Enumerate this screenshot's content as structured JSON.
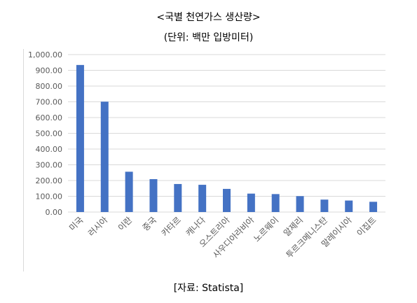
{
  "chart_data": {
    "type": "bar",
    "title": "<국별 천연가스 생산량>",
    "subtitle": "(단위: 백만 입방미터)",
    "source": "[자료: Statista]",
    "categories": [
      "미국",
      "러시아",
      "이란",
      "중국",
      "카타르",
      "캐나다",
      "오스트리아",
      "사우디아라비아",
      "노르웨이",
      "알제리",
      "투르크메니스탄",
      "말레이시아",
      "이집트"
    ],
    "values": [
      934,
      701,
      256,
      209,
      178,
      173,
      147,
      117,
      114,
      101,
      79,
      73,
      65
    ],
    "yticks": [
      "0.00",
      "100.00",
      "200.00",
      "300.00",
      "400.00",
      "500.00",
      "600.00",
      "700.00",
      "800.00",
      "900.00",
      "1,000.00"
    ],
    "ylim": [
      0,
      1000
    ],
    "grid": true,
    "colors": {
      "bar": "#4472c4",
      "grid": "#d9d9d9",
      "text": "#595959"
    }
  }
}
